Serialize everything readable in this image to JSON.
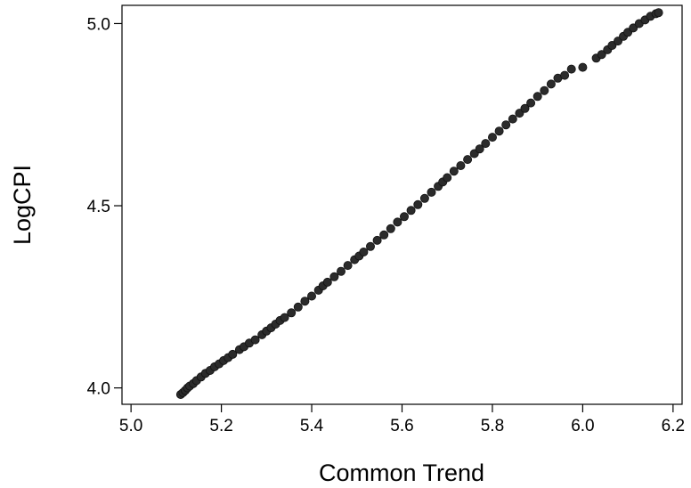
{
  "chart_data": {
    "type": "scatter",
    "xlabel": "Common Trend",
    "ylabel": "LogCPI",
    "xlim": [
      4.98,
      6.22
    ],
    "ylim": [
      3.955,
      5.05
    ],
    "x_ticks": [
      "5.0",
      "5.2",
      "5.4",
      "5.6",
      "5.8",
      "6.0",
      "6.2"
    ],
    "y_ticks": [
      "4.0",
      "4.5",
      "5.0"
    ],
    "x_tick_values": [
      5.0,
      5.2,
      5.4,
      5.6,
      5.8,
      6.0,
      6.2
    ],
    "y_tick_values": [
      4.0,
      4.5,
      5.0
    ],
    "grid": false,
    "marker_color": "#2b2b2b",
    "series": [
      {
        "points": [
          [
            5.11,
            3.982
          ],
          [
            5.115,
            3.987
          ],
          [
            5.12,
            3.993
          ],
          [
            5.125,
            4.0
          ],
          [
            5.13,
            4.005
          ],
          [
            5.138,
            4.012
          ],
          [
            5.145,
            4.02
          ],
          [
            5.155,
            4.03
          ],
          [
            5.165,
            4.04
          ],
          [
            5.175,
            4.048
          ],
          [
            5.185,
            4.058
          ],
          [
            5.195,
            4.066
          ],
          [
            5.205,
            4.075
          ],
          [
            5.215,
            4.083
          ],
          [
            5.225,
            4.092
          ],
          [
            5.24,
            4.105
          ],
          [
            5.25,
            4.113
          ],
          [
            5.262,
            4.123
          ],
          [
            5.275,
            4.132
          ],
          [
            5.29,
            4.146
          ],
          [
            5.3,
            4.156
          ],
          [
            5.31,
            4.165
          ],
          [
            5.32,
            4.175
          ],
          [
            5.33,
            4.185
          ],
          [
            5.34,
            4.193
          ],
          [
            5.355,
            4.206
          ],
          [
            5.37,
            4.222
          ],
          [
            5.385,
            4.238
          ],
          [
            5.4,
            4.252
          ],
          [
            5.415,
            4.268
          ],
          [
            5.425,
            4.28
          ],
          [
            5.435,
            4.29
          ],
          [
            5.45,
            4.305
          ],
          [
            5.465,
            4.32
          ],
          [
            5.48,
            4.336
          ],
          [
            5.495,
            4.352
          ],
          [
            5.505,
            4.362
          ],
          [
            5.515,
            4.373
          ],
          [
            5.53,
            4.388
          ],
          [
            5.545,
            4.405
          ],
          [
            5.56,
            4.42
          ],
          [
            5.575,
            4.437
          ],
          [
            5.59,
            4.455
          ],
          [
            5.605,
            4.47
          ],
          [
            5.62,
            4.487
          ],
          [
            5.635,
            4.503
          ],
          [
            5.65,
            4.52
          ],
          [
            5.665,
            4.537
          ],
          [
            5.68,
            4.553
          ],
          [
            5.69,
            4.565
          ],
          [
            5.7,
            4.577
          ],
          [
            5.715,
            4.595
          ],
          [
            5.73,
            4.61
          ],
          [
            5.745,
            4.627
          ],
          [
            5.76,
            4.643
          ],
          [
            5.772,
            4.656
          ],
          [
            5.785,
            4.671
          ],
          [
            5.8,
            4.688
          ],
          [
            5.815,
            4.705
          ],
          [
            5.83,
            4.722
          ],
          [
            5.845,
            4.738
          ],
          [
            5.86,
            4.754
          ],
          [
            5.872,
            4.767
          ],
          [
            5.885,
            4.782
          ],
          [
            5.9,
            4.8
          ],
          [
            5.915,
            4.816
          ],
          [
            5.93,
            4.834
          ],
          [
            5.945,
            4.85
          ],
          [
            5.96,
            4.858
          ],
          [
            5.975,
            4.875
          ],
          [
            6.0,
            4.88
          ],
          [
            6.03,
            4.905
          ],
          [
            6.042,
            4.915
          ],
          [
            6.055,
            4.928
          ],
          [
            6.065,
            4.94
          ],
          [
            6.078,
            4.952
          ],
          [
            6.09,
            4.965
          ],
          [
            6.1,
            4.976
          ],
          [
            6.112,
            4.988
          ],
          [
            6.125,
            5.0
          ],
          [
            6.138,
            5.01
          ],
          [
            6.15,
            5.02
          ],
          [
            6.162,
            5.027
          ],
          [
            6.168,
            5.03
          ]
        ]
      }
    ]
  }
}
